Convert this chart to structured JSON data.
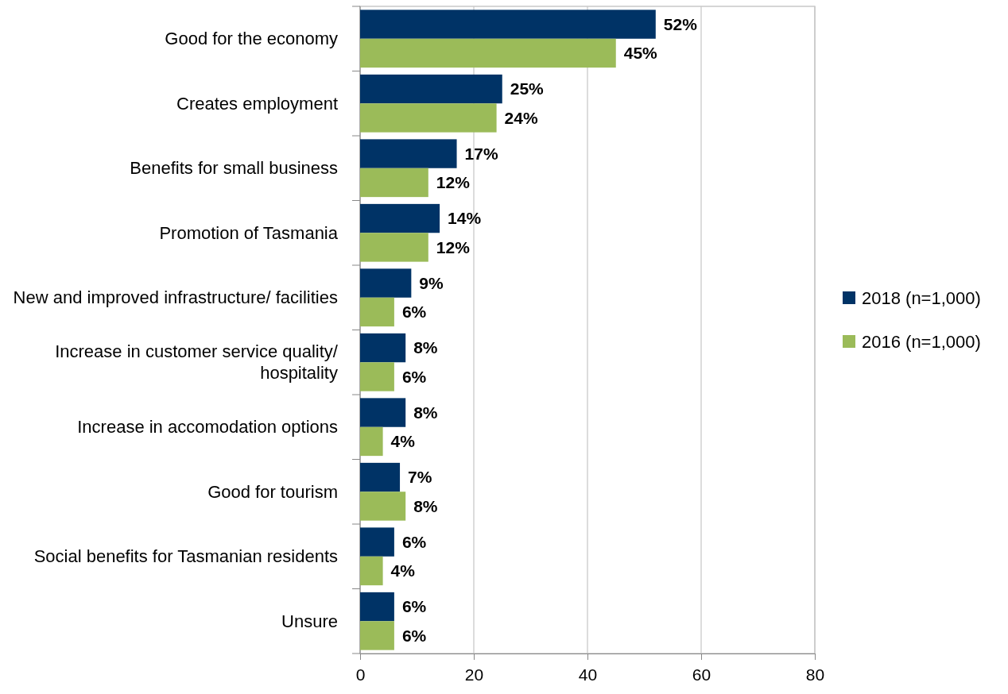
{
  "chart_data": {
    "type": "bar",
    "orientation": "horizontal",
    "categories": [
      "Good for the economy",
      "Creates employment",
      "Benefits for small business",
      "Promotion of Tasmania",
      "New and improved infrastructure/ facilities",
      "Increase in customer service quality/ hospitality",
      "Increase in accomodation options",
      "Good for tourism",
      "Social benefits for Tasmanian residents",
      "Unsure"
    ],
    "series": [
      {
        "name": "2018 (n=1,000)",
        "color": "#003366",
        "values": [
          52,
          25,
          17,
          14,
          9,
          8,
          8,
          7,
          6,
          6
        ],
        "value_labels": [
          "52%",
          "25%",
          "17%",
          "14%",
          "9%",
          "8%",
          "8%",
          "7%",
          "6%",
          "6%"
        ]
      },
      {
        "name": "2016 (n=1,000)",
        "color": "#9bbb59",
        "values": [
          45,
          24,
          12,
          12,
          6,
          6,
          4,
          8,
          4,
          6
        ],
        "value_labels": [
          "45%",
          "24%",
          "12%",
          "12%",
          "6%",
          "6%",
          "4%",
          "8%",
          "4%",
          "6%"
        ]
      }
    ],
    "xlim": [
      0,
      80
    ],
    "xticks": [
      0,
      20,
      40,
      60,
      80
    ],
    "grid": "x",
    "legend": "right"
  }
}
